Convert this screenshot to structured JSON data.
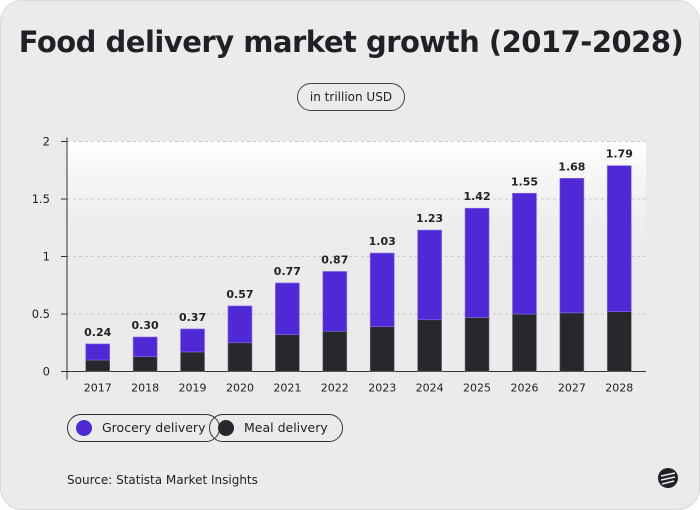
{
  "chart_data": {
    "type": "bar",
    "stacked": true,
    "title": "Food delivery market growth (2017-2028)",
    "subtitle": "in trillion USD",
    "categories": [
      "2017",
      "2018",
      "2019",
      "2020",
      "2021",
      "2022",
      "2023",
      "2024",
      "2025",
      "2026",
      "2027",
      "2028"
    ],
    "series": [
      {
        "name": "Meal delivery",
        "color": "#27282d",
        "values": [
          0.1,
          0.13,
          0.17,
          0.25,
          0.32,
          0.35,
          0.39,
          0.45,
          0.47,
          0.5,
          0.51,
          0.52
        ]
      },
      {
        "name": "Grocery delivery",
        "color": "#5029d6",
        "values": [
          0.14,
          0.17,
          0.2,
          0.32,
          0.45,
          0.52,
          0.64,
          0.78,
          0.95,
          1.05,
          1.17,
          1.27
        ]
      }
    ],
    "totals": [
      "0.24",
      "0.30",
      "0.37",
      "0.57",
      "0.77",
      "0.87",
      "1.03",
      "1.23",
      "1.42",
      "1.55",
      "1.68",
      "1.79"
    ],
    "yticks": [
      "0",
      "0.5",
      "1",
      "1.5",
      "2"
    ],
    "ylim": [
      0,
      2
    ],
    "grid": true,
    "legend": "bottom-left",
    "source": "Source: Statista Market Insights"
  }
}
